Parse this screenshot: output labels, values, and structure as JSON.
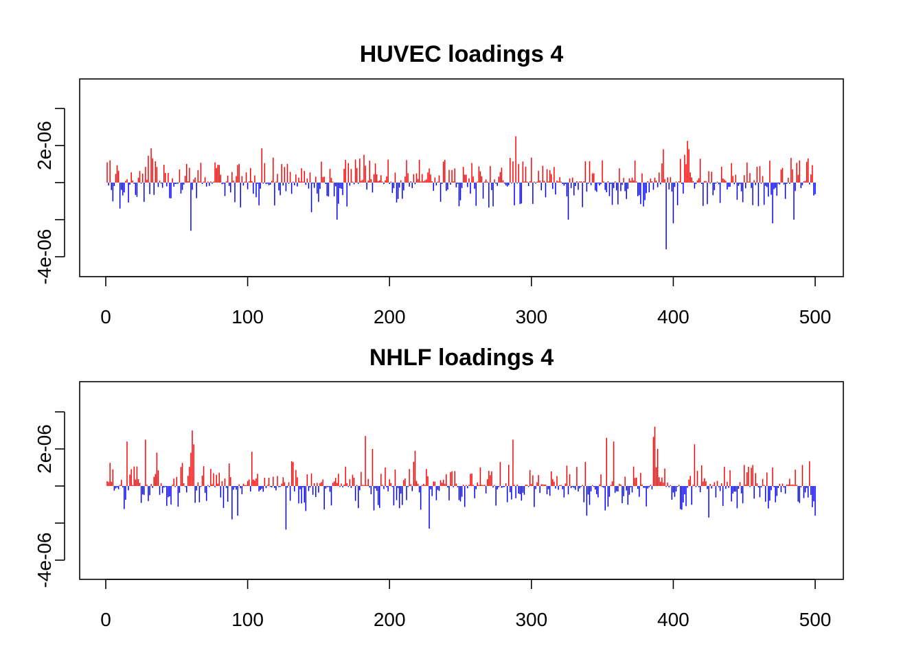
{
  "chart_data": [
    {
      "type": "bar",
      "title": "HUVEC loadings 4",
      "xlabel": "",
      "ylabel": "",
      "xlim": [
        0,
        500
      ],
      "ylim": [
        -5.2e-06,
        5.5e-06
      ],
      "x_ticks": [
        0,
        100,
        200,
        300,
        400,
        500
      ],
      "x_tick_labels": [
        "0",
        "100",
        "200",
        "300",
        "400",
        "500"
      ],
      "y_ticks": [
        -4e-06,
        -2e-06,
        0,
        2e-06,
        4e-06
      ],
      "y_tick_labels": [
        "-4e-06",
        "",
        "",
        "2e-06",
        ""
      ],
      "positive_color": "#ff0000",
      "negative_color": "#0000ff",
      "seed": 4,
      "spikes": [
        {
          "x": 3,
          "y": 1.2e-06
        },
        {
          "x": 10,
          "y": -1.4e-06
        },
        {
          "x": 30,
          "y": 1.45e-06
        },
        {
          "x": 32,
          "y": 1.85e-06
        },
        {
          "x": 35,
          "y": 1.15e-06
        },
        {
          "x": 60,
          "y": -2.6e-06
        },
        {
          "x": 59,
          "y": 8e-07
        },
        {
          "x": 80,
          "y": 9.5e-07
        },
        {
          "x": 93,
          "y": 9.5e-07
        },
        {
          "x": 110,
          "y": 1.85e-06
        },
        {
          "x": 112,
          "y": 1.05e-06
        },
        {
          "x": 118,
          "y": 1.35e-06
        },
        {
          "x": 124,
          "y": 1e-06
        },
        {
          "x": 145,
          "y": -1.6e-06
        },
        {
          "x": 163,
          "y": -2e-06
        },
        {
          "x": 182,
          "y": 1.5e-06
        },
        {
          "x": 289,
          "y": 2.5e-06
        },
        {
          "x": 287,
          "y": 1.15e-06
        },
        {
          "x": 291,
          "y": 1e-06
        },
        {
          "x": 300,
          "y": 1.35e-06
        },
        {
          "x": 326,
          "y": -2e-06
        },
        {
          "x": 338,
          "y": 1.15e-06
        },
        {
          "x": 393,
          "y": 1.8e-06
        },
        {
          "x": 395,
          "y": -3.6e-06
        },
        {
          "x": 400,
          "y": -2.2e-06
        },
        {
          "x": 408,
          "y": 1.5e-06
        },
        {
          "x": 410,
          "y": 2.25e-06
        },
        {
          "x": 411,
          "y": 1.8e-06
        },
        {
          "x": 470,
          "y": -2.2e-06
        },
        {
          "x": 485,
          "y": -2e-06
        }
      ]
    },
    {
      "type": "bar",
      "title": "NHLF loadings 4",
      "xlabel": "",
      "ylabel": "",
      "xlim": [
        0,
        500
      ],
      "ylim": [
        -5.2e-06,
        5.5e-06
      ],
      "x_ticks": [
        0,
        100,
        200,
        300,
        400,
        500
      ],
      "x_tick_labels": [
        "0",
        "100",
        "200",
        "300",
        "400",
        "500"
      ],
      "y_ticks": [
        -4e-06,
        -2e-06,
        0,
        2e-06,
        4e-06
      ],
      "y_tick_labels": [
        "-4e-06",
        "",
        "",
        "2e-06",
        ""
      ],
      "positive_color": "#ff0000",
      "negative_color": "#0000ff",
      "seed": 9,
      "spikes": [
        {
          "x": 15,
          "y": 2.4e-06
        },
        {
          "x": 28,
          "y": 2.5e-06
        },
        {
          "x": 36,
          "y": 1.8e-06
        },
        {
          "x": 60,
          "y": 1.8e-06
        },
        {
          "x": 61,
          "y": 3e-06
        },
        {
          "x": 62,
          "y": 2.25e-06
        },
        {
          "x": 89,
          "y": -1.8e-06
        },
        {
          "x": 93,
          "y": -1.6e-06
        },
        {
          "x": 103,
          "y": 1.85e-06
        },
        {
          "x": 127,
          "y": -2.35e-06
        },
        {
          "x": 183,
          "y": 2.7e-06
        },
        {
          "x": 188,
          "y": 2e-06
        },
        {
          "x": 218,
          "y": 1.9e-06
        },
        {
          "x": 228,
          "y": -2.3e-06
        },
        {
          "x": 287,
          "y": 2.5e-06
        },
        {
          "x": 339,
          "y": -1.6e-06
        },
        {
          "x": 353,
          "y": 2.6e-06
        },
        {
          "x": 358,
          "y": 2.4e-06
        },
        {
          "x": 386,
          "y": 2.65e-06
        },
        {
          "x": 387,
          "y": 3.2e-06
        },
        {
          "x": 389,
          "y": 2e-06
        },
        {
          "x": 415,
          "y": 2.25e-06
        },
        {
          "x": 425,
          "y": -1.7e-06
        },
        {
          "x": 470,
          "y": 1e-06
        },
        {
          "x": 500,
          "y": -1.6e-06
        }
      ]
    }
  ]
}
